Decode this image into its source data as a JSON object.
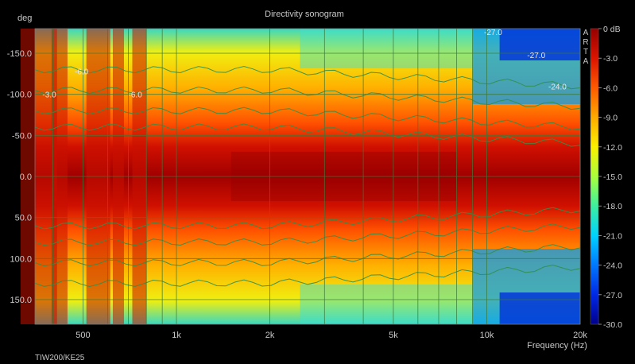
{
  "chart_data": {
    "type": "heatmap",
    "title": "Directivity sonogram",
    "ylabel": "deg",
    "xlabel": "Frequency (Hz)",
    "x_scale": "log",
    "xlim": [
      350,
      20000
    ],
    "ylim": [
      -180,
      180
    ],
    "y_inverted": true,
    "x_ticks": [
      {
        "value": 500,
        "label": "500"
      },
      {
        "value": 1000,
        "label": "1k"
      },
      {
        "value": 2000,
        "label": "2k"
      },
      {
        "value": 5000,
        "label": "5k"
      },
      {
        "value": 10000,
        "label": "10k"
      },
      {
        "value": 20000,
        "label": "20k"
      }
    ],
    "y_ticks": [
      {
        "value": -150,
        "label": "-150.0"
      },
      {
        "value": -100,
        "label": "-100.0"
      },
      {
        "value": -50,
        "label": "-50.0"
      },
      {
        "value": 0,
        "label": "0.0"
      },
      {
        "value": 50,
        "label": "50.0"
      },
      {
        "value": 100,
        "label": "100.0"
      },
      {
        "value": 150,
        "label": "150.0"
      }
    ],
    "colorbar": {
      "range": [
        -30,
        0
      ],
      "unit": "dB",
      "ticks": [
        "0 dB",
        "-3.0",
        "-6.0",
        "-9.0",
        "-12.0",
        "-15.0",
        "-18.0",
        "-21.0",
        "-24.0",
        "-27.0",
        "-30.0"
      ],
      "side_text": "ARTA"
    },
    "grid": true,
    "contour_labels": [
      {
        "text": "-3.0",
        "freq": 370,
        "deg": -100
      },
      {
        "text": "-6.0",
        "freq": 470,
        "deg": -128
      },
      {
        "text": "-6.0",
        "freq": 700,
        "deg": -100
      },
      {
        "text": "-27.0",
        "freq": 9800,
        "deg": -176
      },
      {
        "text": "-27.0",
        "freq": 13500,
        "deg": -148
      },
      {
        "text": "-24.0",
        "freq": 15800,
        "deg": -110
      }
    ]
  },
  "footer": {
    "label": "TIW200/KE25"
  }
}
